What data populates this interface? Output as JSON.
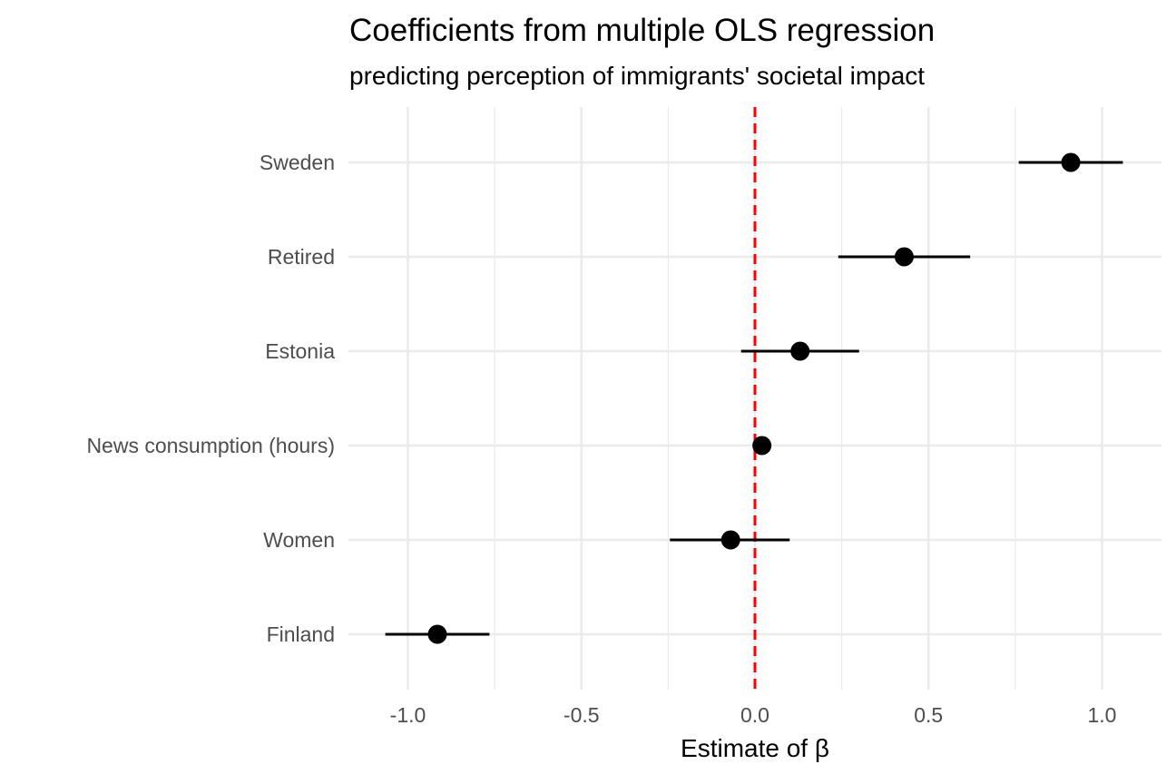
{
  "chart_data": {
    "type": "scatter",
    "title": "Coefficients from multiple OLS regression",
    "subtitle": "predicting perception of immigrants' societal impact",
    "xlabel": "Estimate of β",
    "ylabel": "",
    "xlim": [
      -1.18,
      1.18
    ],
    "x_ticks": [
      -1.0,
      -0.5,
      0.0,
      0.5,
      1.0
    ],
    "x_tick_labels": [
      "-1.0",
      "-0.5",
      "0.0",
      "0.5",
      "1.0"
    ],
    "grid": true,
    "reference_line": {
      "x": 0.0,
      "style": "dashed",
      "color": "#ff0000"
    },
    "point_color": "#000000",
    "points": [
      {
        "label": "Sweden",
        "estimate": 0.91,
        "low": 0.76,
        "high": 1.06
      },
      {
        "label": "Retired",
        "estimate": 0.43,
        "low": 0.24,
        "high": 0.62
      },
      {
        "label": "Estonia",
        "estimate": 0.13,
        "low": -0.04,
        "high": 0.3
      },
      {
        "label": "News consumption (hours)",
        "estimate": 0.02,
        "low": 0.0,
        "high": 0.04
      },
      {
        "label": "Women",
        "estimate": -0.07,
        "low": -0.245,
        "high": 0.1
      },
      {
        "label": "Finland",
        "estimate": -0.915,
        "low": -1.065,
        "high": -0.765
      }
    ]
  }
}
